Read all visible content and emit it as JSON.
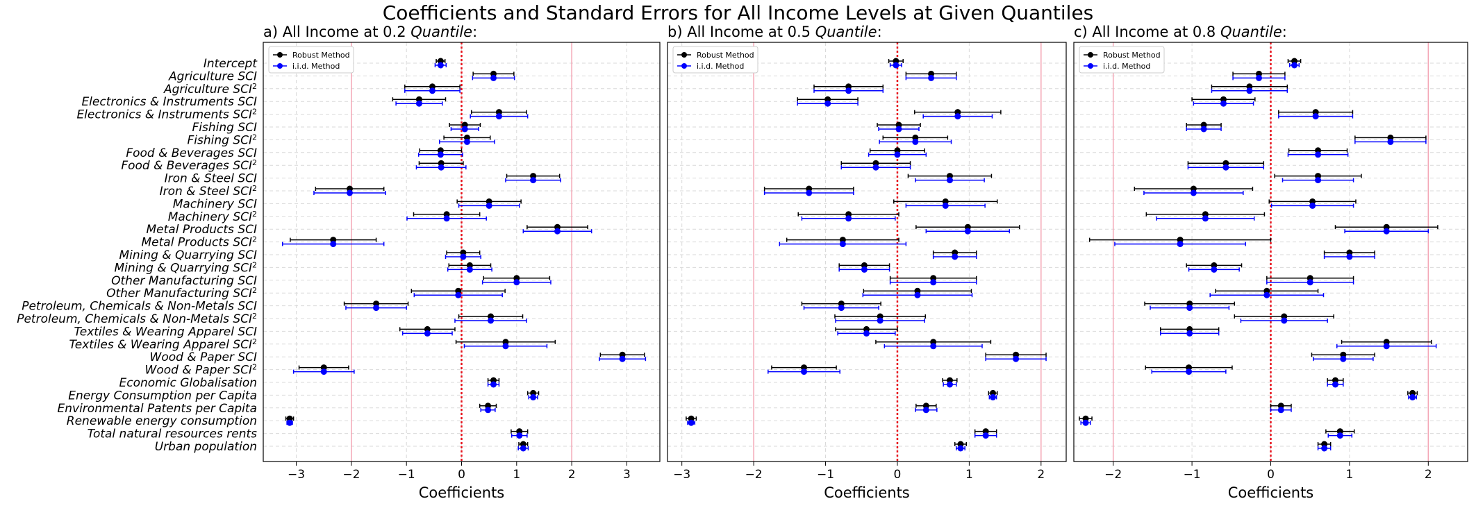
{
  "title": "Coefficients and Standard Errors for All Income Levels at Given Quantiles",
  "chart_data": [
    {
      "type": "errorbar",
      "panel_label": "a) All Income at 0.2 ",
      "panel_label_italic": "Quantile",
      "panel_label_suffix": ":",
      "xlabel": "Coefficients",
      "xlim": [
        -3.6,
        3.6
      ],
      "xticks": [
        -3,
        -2,
        -1,
        0,
        1,
        2,
        3
      ],
      "vlines": [
        {
          "x": 0,
          "style": "red-dotted"
        },
        {
          "x": -2,
          "style": "pink"
        },
        {
          "x": 2,
          "style": "pink"
        }
      ],
      "legend": {
        "position": "top-left",
        "entries": [
          "Robust Method",
          "i.i.d. Method"
        ]
      },
      "series": [
        {
          "name": "Robust Method",
          "color": "#000000",
          "estimates": [
            -0.38,
            0.58,
            -0.53,
            -0.77,
            0.68,
            0.06,
            0.1,
            -0.38,
            -0.37,
            1.3,
            -2.03,
            0.5,
            -0.27,
            1.74,
            -2.33,
            0.03,
            0.15,
            1.0,
            -0.06,
            -1.55,
            0.53,
            -0.62,
            0.8,
            2.92,
            -2.5,
            0.58,
            1.3,
            0.48,
            -3.12,
            1.05,
            1.12
          ],
          "errors": [
            0.08,
            0.37,
            0.5,
            0.48,
            0.5,
            0.28,
            0.42,
            0.38,
            0.4,
            0.48,
            0.62,
            0.58,
            0.6,
            0.55,
            0.78,
            0.3,
            0.38,
            0.6,
            0.85,
            0.58,
            0.58,
            0.5,
            0.9,
            0.4,
            0.45,
            0.1,
            0.1,
            0.15,
            0.07,
            0.15,
            0.08
          ]
        },
        {
          "name": "i.i.d. Method",
          "color": "#0000ff",
          "estimates": [
            -0.38,
            0.58,
            -0.53,
            -0.77,
            0.68,
            0.06,
            0.1,
            -0.38,
            -0.37,
            1.3,
            -2.03,
            0.5,
            -0.27,
            1.74,
            -2.33,
            0.03,
            0.15,
            1.0,
            -0.06,
            -1.55,
            0.53,
            -0.62,
            0.8,
            2.92,
            -2.5,
            0.58,
            1.3,
            0.48,
            -3.12,
            1.05,
            1.12
          ],
          "errors": [
            0.1,
            0.38,
            0.5,
            0.42,
            0.52,
            0.25,
            0.5,
            0.4,
            0.45,
            0.5,
            0.65,
            0.55,
            0.72,
            0.62,
            0.92,
            0.32,
            0.4,
            0.62,
            0.8,
            0.55,
            0.65,
            0.45,
            0.75,
            0.42,
            0.55,
            0.1,
            0.08,
            0.13,
            0.05,
            0.14,
            0.09
          ]
        }
      ]
    },
    {
      "type": "errorbar",
      "panel_label": "b) All Income at 0.5 ",
      "panel_label_italic": "Quantile",
      "panel_label_suffix": ":",
      "xlabel": "Coefficients",
      "xlim": [
        -3.2,
        2.35
      ],
      "xticks": [
        -3,
        -2,
        -1,
        0,
        1,
        2
      ],
      "vlines": [
        {
          "x": 0,
          "style": "red-dotted"
        },
        {
          "x": -2,
          "style": "pink"
        },
        {
          "x": 2,
          "style": "pink"
        }
      ],
      "legend": {
        "position": "top-left",
        "entries": [
          "Robust Method",
          "i.i.d. Method"
        ]
      },
      "series": [
        {
          "name": "Robust Method",
          "color": "#000000",
          "estimates": [
            -0.02,
            0.47,
            -0.68,
            -0.97,
            0.84,
            0.02,
            0.25,
            0.0,
            -0.3,
            0.73,
            -1.23,
            0.67,
            -0.68,
            0.98,
            -0.76,
            0.8,
            -0.46,
            0.5,
            0.28,
            -0.78,
            -0.24,
            -0.43,
            0.5,
            1.65,
            -1.3,
            0.73,
            1.33,
            0.4,
            -2.87,
            1.23,
            0.88
          ],
          "errors": [
            0.1,
            0.35,
            0.48,
            0.42,
            0.6,
            0.3,
            0.45,
            0.38,
            0.48,
            0.58,
            0.62,
            0.72,
            0.7,
            0.72,
            0.78,
            0.3,
            0.35,
            0.6,
            0.75,
            0.55,
            0.63,
            0.43,
            0.8,
            0.42,
            0.45,
            0.1,
            0.06,
            0.14,
            0.07,
            0.15,
            0.08
          ]
        },
        {
          "name": "i.i.d. Method",
          "color": "#0000ff",
          "estimates": [
            -0.02,
            0.47,
            -0.68,
            -0.97,
            0.84,
            0.02,
            0.25,
            0.0,
            -0.3,
            0.73,
            -1.23,
            0.67,
            -0.68,
            0.98,
            -0.76,
            0.8,
            -0.46,
            0.5,
            0.28,
            -0.78,
            -0.24,
            -0.43,
            0.5,
            1.65,
            -1.3,
            0.73,
            1.33,
            0.4,
            -2.87,
            1.23,
            0.88
          ],
          "errors": [
            0.08,
            0.35,
            0.48,
            0.42,
            0.48,
            0.28,
            0.5,
            0.4,
            0.48,
            0.48,
            0.62,
            0.55,
            0.65,
            0.58,
            0.88,
            0.3,
            0.35,
            0.6,
            0.76,
            0.52,
            0.62,
            0.4,
            0.68,
            0.42,
            0.5,
            0.09,
            0.05,
            0.15,
            0.05,
            0.15,
            0.06
          ]
        }
      ]
    },
    {
      "type": "errorbar",
      "panel_label": "c) All Income at 0.8 ",
      "panel_label_italic": "Quantile",
      "panel_label_suffix": ":",
      "xlabel": "Coefficients",
      "xlim": [
        -2.5,
        2.5
      ],
      "xticks": [
        -2,
        -1,
        0,
        1,
        2
      ],
      "vlines": [
        {
          "x": 0,
          "style": "red-dotted"
        },
        {
          "x": -2,
          "style": "pink"
        },
        {
          "x": 2,
          "style": "pink"
        }
      ],
      "legend": {
        "position": "top-left",
        "entries": [
          "Robust Method",
          "i.i.d. Method"
        ]
      },
      "series": [
        {
          "name": "Robust Method",
          "color": "#000000",
          "estimates": [
            0.3,
            -0.15,
            -0.27,
            -0.6,
            0.57,
            -0.85,
            1.52,
            0.6,
            -0.57,
            0.6,
            -0.98,
            0.53,
            -0.83,
            1.47,
            -1.15,
            1.0,
            -0.72,
            0.5,
            -0.05,
            -1.03,
            0.17,
            -1.03,
            1.47,
            0.92,
            -1.04,
            0.82,
            1.8,
            0.13,
            -2.35,
            0.88,
            0.68
          ],
          "errors": [
            0.08,
            0.33,
            0.48,
            0.4,
            0.47,
            0.22,
            0.45,
            0.37,
            0.48,
            0.55,
            0.75,
            0.55,
            0.75,
            0.65,
            1.15,
            0.32,
            0.35,
            0.55,
            0.65,
            0.57,
            0.63,
            0.37,
            0.57,
            0.4,
            0.55,
            0.1,
            0.06,
            0.13,
            0.08,
            0.18,
            0.08
          ]
        },
        {
          "name": "i.i.d. Method",
          "color": "#0000ff",
          "estimates": [
            0.3,
            -0.15,
            -0.27,
            -0.6,
            0.57,
            -0.85,
            1.52,
            0.6,
            -0.57,
            0.6,
            -0.98,
            0.53,
            -0.83,
            1.47,
            -1.15,
            1.0,
            -0.72,
            0.5,
            -0.05,
            -1.03,
            0.17,
            -1.03,
            1.47,
            0.92,
            -1.04,
            0.82,
            1.8,
            0.13,
            -2.35,
            0.88,
            0.68
          ],
          "errors": [
            0.06,
            0.33,
            0.48,
            0.38,
            0.47,
            0.22,
            0.45,
            0.38,
            0.48,
            0.45,
            0.63,
            0.52,
            0.62,
            0.53,
            0.83,
            0.32,
            0.32,
            0.55,
            0.72,
            0.5,
            0.55,
            0.37,
            0.63,
            0.38,
            0.47,
            0.1,
            0.05,
            0.13,
            0.06,
            0.15,
            0.08
          ]
        }
      ]
    }
  ],
  "categories": [
    {
      "text": "Intercept"
    },
    {
      "text": "Agriculture SCI"
    },
    {
      "text": "Agriculture SCI",
      "sup": "2"
    },
    {
      "text": "Electronics & Instruments SCI"
    },
    {
      "text": "Electronics & Instruments SCI",
      "sup": "2"
    },
    {
      "text": "Fishing SCI"
    },
    {
      "text": "Fishing SCI",
      "sup": "2"
    },
    {
      "text": "Food & Beverages SCI"
    },
    {
      "text": "Food & Beverages SCI",
      "sup": "2"
    },
    {
      "text": "Iron & Steel SCI"
    },
    {
      "text": "Iron & Steel SCI",
      "sup": "2"
    },
    {
      "text": "Machinery SCI"
    },
    {
      "text": "Machinery SCI",
      "sup": "2"
    },
    {
      "text": "Metal Products SCI"
    },
    {
      "text": "Metal Products SCI",
      "sup": "2"
    },
    {
      "text": "Mining & Quarrying SCI"
    },
    {
      "text": "Mining & Quarrying SCI",
      "sup": "2"
    },
    {
      "text": "Other Manufacturing SCI"
    },
    {
      "text": "Other Manufacturing SCI",
      "sup": "2"
    },
    {
      "text": "Petroleum, Chemicals & Non-Metals SCI"
    },
    {
      "text": "Petroleum, Chemicals & Non-Metals SCI",
      "sup": "2"
    },
    {
      "text": "Textiles & Wearing Apparel SCI"
    },
    {
      "text": "Textiles & Wearing Apparel SCI",
      "sup": "2"
    },
    {
      "text": "Wood & Paper SCI"
    },
    {
      "text": "Wood & Paper SCI",
      "sup": "2"
    },
    {
      "text": "Economic Globalisation"
    },
    {
      "text": "Energy Consumption per Capita"
    },
    {
      "text": "Environmental Patents per Capita"
    },
    {
      "text": "Renewable energy consumption"
    },
    {
      "text": "Total natural resources rents"
    },
    {
      "text": "Urban population"
    }
  ],
  "colors": {
    "robust": "#000000",
    "iid": "#0000ff",
    "zero_line": "#e8141d",
    "reference_line": "#f4a6b5",
    "grid": "#d9d9d9"
  }
}
